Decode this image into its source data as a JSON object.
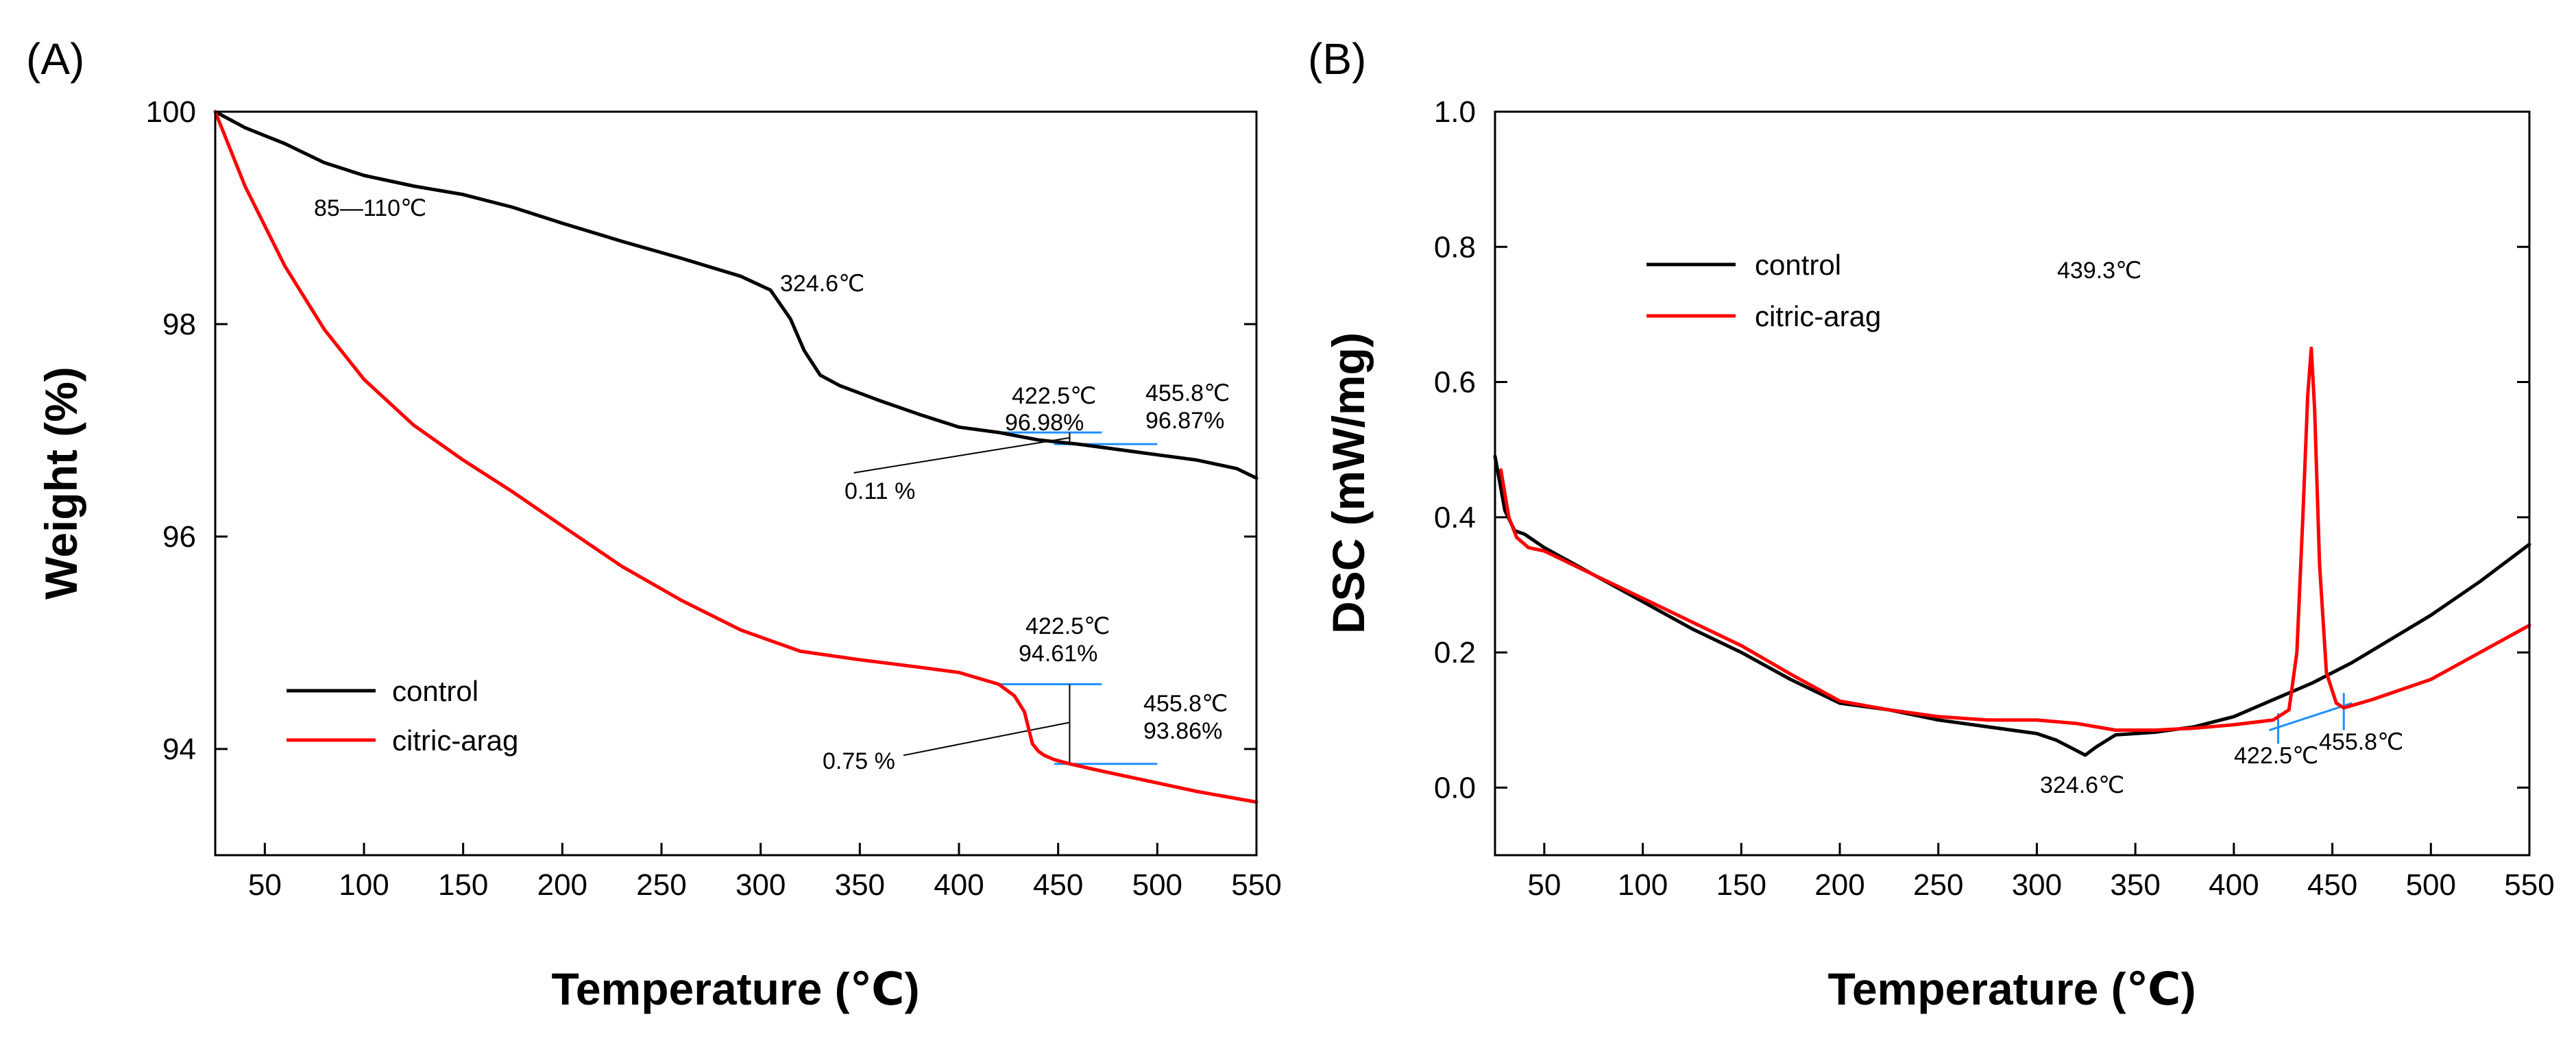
{
  "chart_data": [
    {
      "type": "line",
      "panel_label": "(A)",
      "title": "",
      "xlabel": "Temperature (℃)",
      "ylabel": "Weight (%)",
      "xlim": [
        25,
        550
      ],
      "ylim": [
        93,
        100
      ],
      "xticks": [
        50,
        100,
        150,
        200,
        250,
        300,
        350,
        400,
        450,
        500,
        550
      ],
      "yticks": [
        94,
        96,
        98,
        100
      ],
      "grid": false,
      "legend_position": "lower-left",
      "series": [
        {
          "name": "control",
          "color": "#000000",
          "x": [
            25,
            40,
            60,
            80,
            100,
            125,
            150,
            175,
            200,
            230,
            260,
            290,
            305,
            315,
            322,
            330,
            340,
            360,
            380,
            400,
            420,
            440,
            460,
            480,
            500,
            520,
            540,
            550
          ],
          "y": [
            100,
            99.85,
            99.7,
            99.52,
            99.4,
            99.3,
            99.22,
            99.1,
            98.95,
            98.78,
            98.62,
            98.45,
            98.32,
            98.05,
            97.75,
            97.52,
            97.42,
            97.28,
            97.15,
            97.03,
            96.98,
            96.91,
            96.87,
            96.82,
            96.77,
            96.72,
            96.64,
            96.55
          ]
        },
        {
          "name": "citric-arag",
          "color": "#ff0000",
          "x": [
            25,
            40,
            60,
            80,
            100,
            125,
            150,
            175,
            200,
            230,
            260,
            290,
            320,
            350,
            380,
            400,
            420,
            428,
            433,
            437,
            440,
            443,
            448,
            455.8,
            470,
            500,
            520,
            550
          ],
          "y": [
            100,
            99.3,
            98.55,
            97.95,
            97.48,
            97.05,
            96.72,
            96.42,
            96.1,
            95.72,
            95.4,
            95.12,
            94.92,
            94.84,
            94.77,
            94.72,
            94.61,
            94.5,
            94.35,
            94.05,
            93.98,
            93.94,
            93.9,
            93.86,
            93.8,
            93.68,
            93.6,
            93.5
          ]
        }
      ],
      "annotations": [
        {
          "text": "85—110℃"
        },
        {
          "text": "324.6℃"
        },
        {
          "text": "422.5℃",
          "value": "96.98%"
        },
        {
          "text": "455.8℃",
          "value": "96.87%"
        },
        {
          "text": "0.11 %"
        },
        {
          "text": "422.5℃",
          "value": "94.61%"
        },
        {
          "text": "455.8℃",
          "value": "93.86%"
        },
        {
          "text": "0.75 %"
        }
      ]
    },
    {
      "type": "line",
      "panel_label": "(B)",
      "title": "",
      "xlabel": "Temperature (℃)",
      "ylabel": "DSC (mW/mg)",
      "xlim": [
        25,
        550
      ],
      "ylim": [
        -0.1,
        1.0
      ],
      "xticks": [
        50,
        100,
        150,
        200,
        250,
        300,
        350,
        400,
        450,
        500,
        550
      ],
      "yticks": [
        0.0,
        0.2,
        0.4,
        0.6,
        0.8,
        1.0
      ],
      "ytick_labels": [
        "0.0",
        "0.2",
        "0.4",
        "0.6",
        "0.8",
        "1.0"
      ],
      "grid": false,
      "legend_position": "top-left",
      "series": [
        {
          "name": "control",
          "color": "#000000",
          "x": [
            25,
            30,
            35,
            40,
            50,
            75,
            100,
            125,
            150,
            175,
            200,
            225,
            250,
            275,
            300,
            310,
            318,
            324.6,
            330,
            340,
            350,
            360,
            380,
            400,
            420,
            440,
            460,
            480,
            500,
            525,
            550
          ],
          "y": [
            0.49,
            0.41,
            0.38,
            0.375,
            0.355,
            0.315,
            0.275,
            0.235,
            0.2,
            0.16,
            0.125,
            0.115,
            0.1,
            0.09,
            0.08,
            0.07,
            0.058,
            0.048,
            0.06,
            0.078,
            0.08,
            0.082,
            0.09,
            0.105,
            0.13,
            0.155,
            0.185,
            0.22,
            0.255,
            0.305,
            0.36
          ]
        },
        {
          "name": "citric-arag",
          "color": "#ff0000",
          "x": [
            28,
            32,
            36,
            42,
            50,
            75,
            100,
            125,
            150,
            175,
            200,
            225,
            250,
            275,
            300,
            320,
            340,
            360,
            380,
            400,
            420,
            428,
            432,
            435,
            437.5,
            439.3,
            441,
            443.5,
            447,
            452,
            455.8,
            470,
            500,
            525,
            550
          ],
          "y": [
            0.47,
            0.4,
            0.37,
            0.355,
            0.35,
            0.315,
            0.28,
            0.245,
            0.21,
            0.168,
            0.128,
            0.115,
            0.105,
            0.1,
            0.1,
            0.095,
            0.085,
            0.085,
            0.088,
            0.093,
            0.1,
            0.115,
            0.2,
            0.4,
            0.58,
            0.65,
            0.56,
            0.33,
            0.17,
            0.125,
            0.118,
            0.13,
            0.16,
            0.2,
            0.24
          ]
        }
      ],
      "annotations": [
        {
          "text": "439.3℃"
        },
        {
          "text": "324.6℃"
        },
        {
          "text": "422.5℃"
        },
        {
          "text": "455.8℃"
        }
      ]
    }
  ]
}
